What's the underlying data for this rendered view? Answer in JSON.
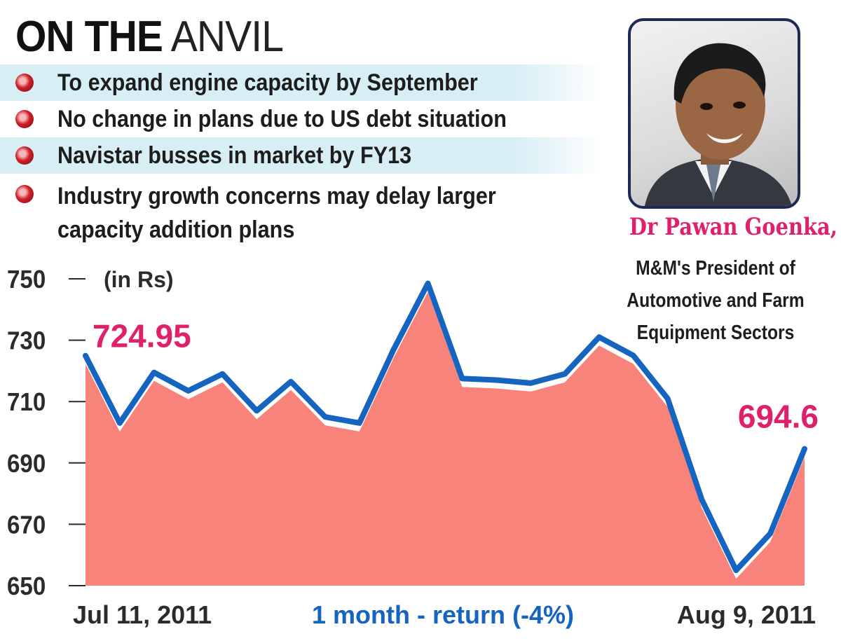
{
  "headline": {
    "bold": "ON THE",
    "light": " ANVIL"
  },
  "bullets": [
    "To expand engine capacity by September",
    "No change in plans due to US debt situation",
    "Navistar busses in market by FY13",
    "Industry growth concerns may delay larger capacity addition plans"
  ],
  "person": {
    "name": "Dr Pawan Goenka,",
    "role": "M&M's President of Automotive and Farm Equipment Sectors"
  },
  "colors": {
    "line": "#1565c0",
    "area": "#f7837a",
    "callout": "#e0206a",
    "bullet_shade": "#d7eef5"
  },
  "chart_data": {
    "type": "area",
    "unit_label": "(in Rs)",
    "ylim": [
      650,
      750
    ],
    "yticks": [
      750,
      730,
      710,
      690,
      670,
      650
    ],
    "x_start_label": "Jul 11, 2011",
    "x_end_label": "Aug 9, 2011",
    "subtitle": "1 month - return (-4%)",
    "start_callout": "724.95",
    "end_callout": "694.6",
    "series": [
      {
        "values": [
          724.95,
          703.0,
          719.5,
          713.5,
          719.0,
          707.0,
          716.5,
          705.0,
          703.0,
          727.0,
          748.5,
          717.5,
          717.0,
          716.0,
          719.0,
          731.0,
          725.0,
          711.0,
          678.0,
          655.0,
          667.0,
          694.6
        ]
      }
    ],
    "grid": false
  }
}
